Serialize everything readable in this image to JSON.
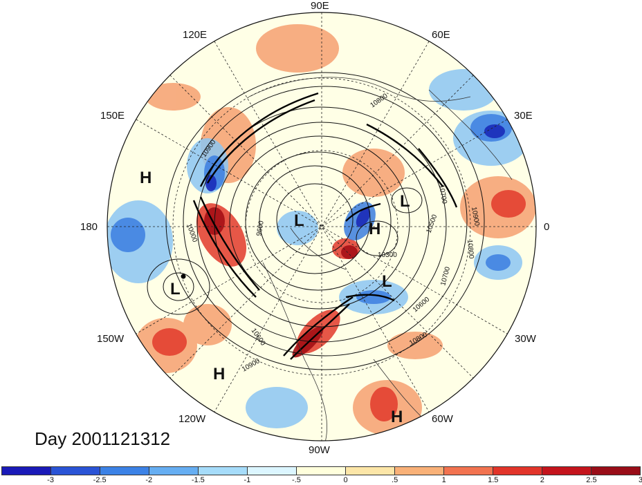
{
  "title": "Day 2001121312",
  "longitude_labels": [
    {
      "key": "90E",
      "text": "90E"
    },
    {
      "key": "60E",
      "text": "60E"
    },
    {
      "key": "120E",
      "text": "120E"
    },
    {
      "key": "150E",
      "text": "150E"
    },
    {
      "key": "30E",
      "text": "30E"
    },
    {
      "key": "180",
      "text": "180"
    },
    {
      "key": "0",
      "text": "0"
    },
    {
      "key": "150W",
      "text": "150W"
    },
    {
      "key": "30W",
      "text": "30W"
    },
    {
      "key": "120W",
      "text": "120W"
    },
    {
      "key": "60W",
      "text": "60W"
    },
    {
      "key": "90W",
      "text": "90W"
    }
  ],
  "pressure_systems": [
    "H",
    "L",
    "L",
    "H",
    "L",
    "L",
    "H",
    "H"
  ],
  "contour_labels": [
    "10900",
    "10800",
    "10900",
    "10700",
    "10600",
    "10500",
    "10300",
    "10600",
    "10700",
    "10800",
    "10600",
    "10900",
    "10800",
    "9600",
    "10000"
  ],
  "colorbar": {
    "colors": [
      "#1a1ab8",
      "#2a54d6",
      "#3c82e6",
      "#66aef2",
      "#a6dcfa",
      "#dcf6ff",
      "#ffffdc",
      "#fce6a8",
      "#f9b178",
      "#f27350",
      "#e2352a",
      "#c4141c",
      "#990d18"
    ],
    "ticks": [
      "-3",
      "-2.5",
      "-2",
      "-1.5",
      "-1",
      "-.5",
      "0",
      ".5",
      "1",
      "1.5",
      "2",
      "2.5",
      "3"
    ]
  }
}
